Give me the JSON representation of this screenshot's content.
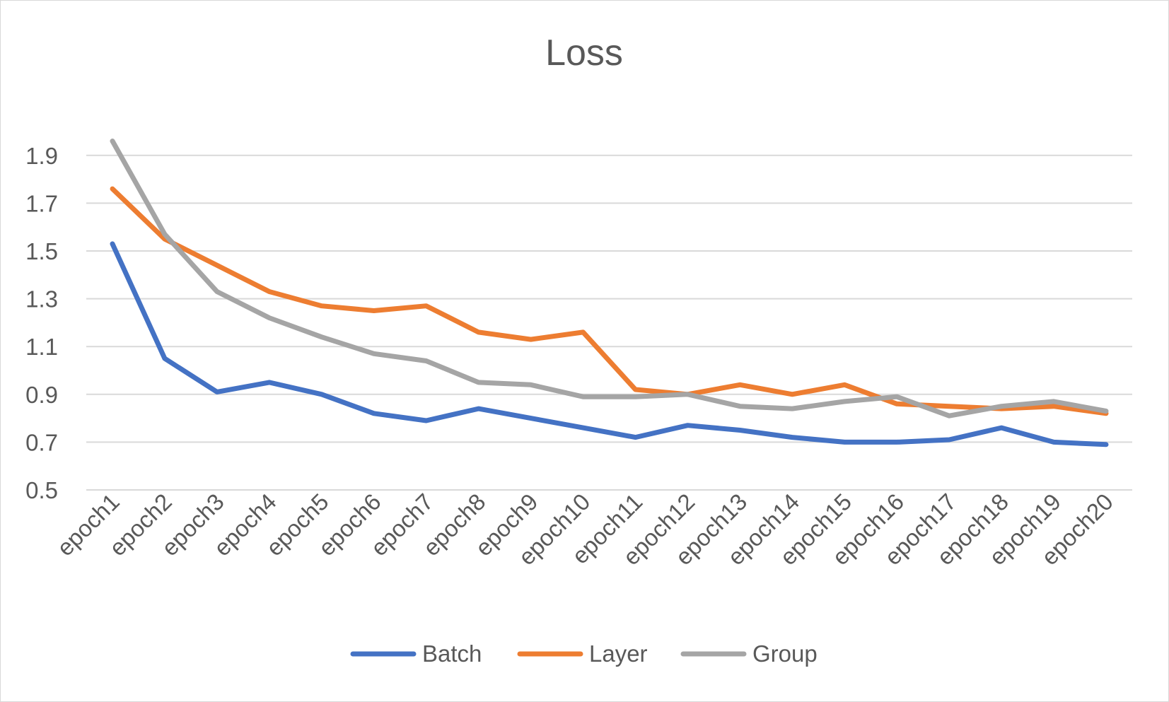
{
  "chart_data": {
    "type": "line",
    "title": "Loss",
    "xlabel": "",
    "ylabel": "",
    "categories": [
      "epoch1",
      "epoch2",
      "epoch3",
      "epoch4",
      "epoch5",
      "epoch6",
      "epoch7",
      "epoch8",
      "epoch9",
      "epoch10",
      "epoch11",
      "epoch12",
      "epoch13",
      "epoch14",
      "epoch15",
      "epoch16",
      "epoch17",
      "epoch18",
      "epoch19",
      "epoch20"
    ],
    "ylim": [
      0.5,
      2.0
    ],
    "yticks": [
      "0.5",
      "0.7",
      "0.9",
      "1.1",
      "1.3",
      "1.5",
      "1.7",
      "1.9"
    ],
    "grid": true,
    "legend_position": "bottom",
    "series": [
      {
        "name": "Batch",
        "color": "#4472c4",
        "values": [
          1.53,
          1.05,
          0.91,
          0.95,
          0.9,
          0.82,
          0.79,
          0.84,
          0.8,
          0.76,
          0.72,
          0.77,
          0.75,
          0.72,
          0.7,
          0.7,
          0.71,
          0.76,
          0.7,
          0.69
        ]
      },
      {
        "name": "Layer",
        "color": "#ed7d31",
        "values": [
          1.76,
          1.55,
          1.44,
          1.33,
          1.27,
          1.25,
          1.27,
          1.16,
          1.13,
          1.16,
          0.92,
          0.9,
          0.94,
          0.9,
          0.94,
          0.86,
          0.85,
          0.84,
          0.85,
          0.82
        ]
      },
      {
        "name": "Group",
        "color": "#a5a5a5",
        "values": [
          1.96,
          1.57,
          1.33,
          1.22,
          1.14,
          1.07,
          1.04,
          0.95,
          0.94,
          0.89,
          0.89,
          0.9,
          0.85,
          0.84,
          0.87,
          0.89,
          0.81,
          0.85,
          0.87,
          0.83
        ]
      }
    ]
  }
}
